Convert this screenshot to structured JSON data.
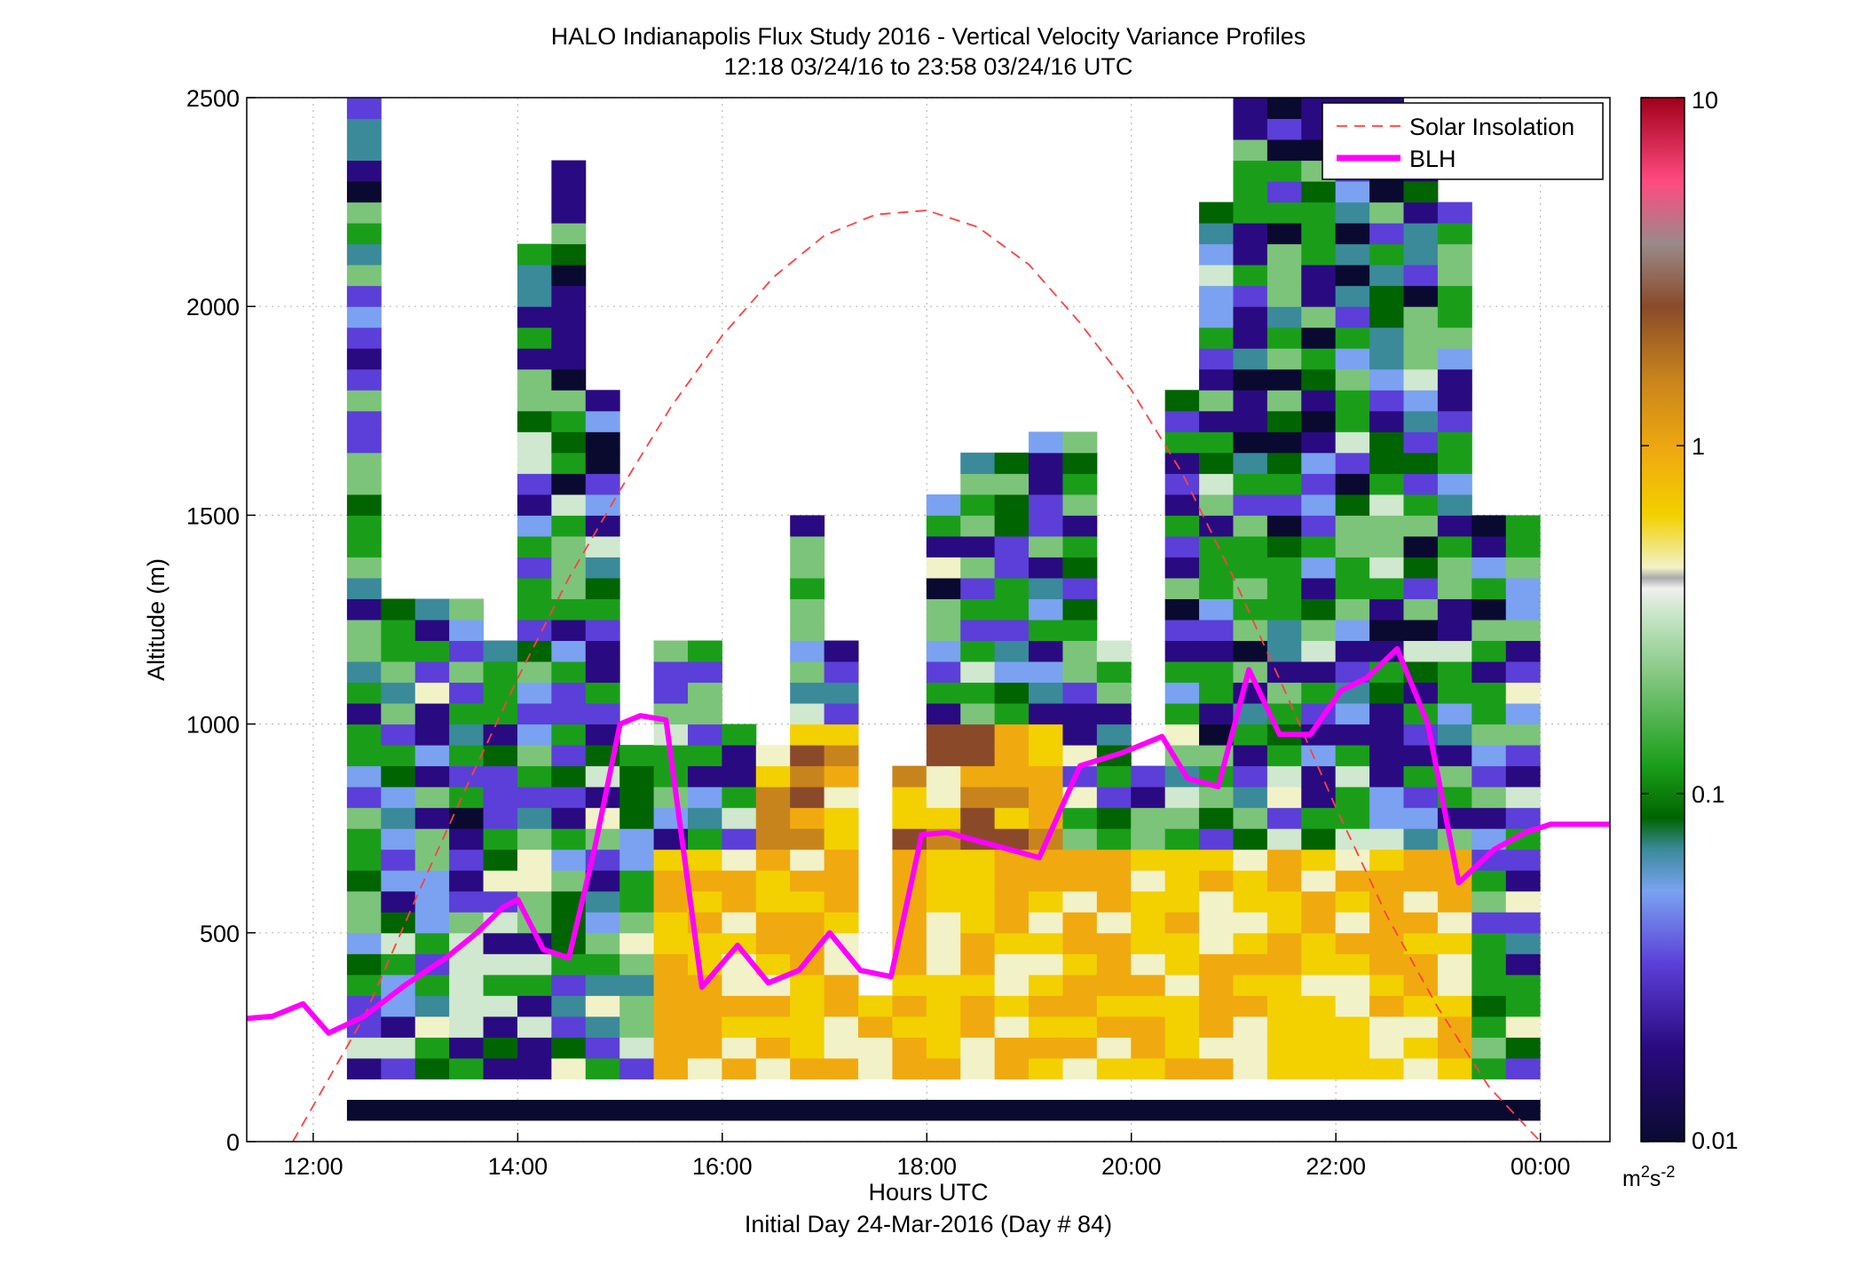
{
  "chart_data": {
    "type": "heatmap",
    "title": "HALO Indianapolis Flux Study 2016 - Vertical Velocity Variance Profiles",
    "subtitle": "12:18 03/24/16 to 23:58 03/24/16  UTC",
    "xlabel": "Hours UTC",
    "xlabel2": "Initial Day 24-Mar-2016 (Day # 84)",
    "ylabel": "Altitude (m)",
    "x_range_hours": [
      11.35,
      24.68
    ],
    "y_range_m": [
      0,
      2500
    ],
    "x_ticks": [
      {
        "value": 12,
        "label": "12:00"
      },
      {
        "value": 14,
        "label": "14:00"
      },
      {
        "value": 16,
        "label": "16:00"
      },
      {
        "value": 18,
        "label": "18:00"
      },
      {
        "value": 20,
        "label": "20:00"
      },
      {
        "value": 22,
        "label": "22:00"
      },
      {
        "value": 24,
        "label": "00:00"
      }
    ],
    "y_ticks": [
      {
        "value": 0,
        "label": "0"
      },
      {
        "value": 500,
        "label": "500"
      },
      {
        "value": 1000,
        "label": "1000"
      },
      {
        "value": 1500,
        "label": "1500"
      },
      {
        "value": 2000,
        "label": "2000"
      },
      {
        "value": 2500,
        "label": "2500"
      }
    ],
    "grid": true,
    "legend_position": "top-right",
    "colorbar": {
      "scale": "log",
      "range": [
        0.01,
        10
      ],
      "ticks": [
        {
          "value": 0.01,
          "label": "0.01"
        },
        {
          "value": 0.1,
          "label": "0.1"
        },
        {
          "value": 1,
          "label": "1"
        },
        {
          "value": 10,
          "label": "10"
        }
      ],
      "unit_base": "m",
      "unit_sup1": "2",
      "unit_mid": "s",
      "unit_sup2": "-2"
    },
    "series": [
      {
        "name": "Solar Insolation",
        "style": "dashed",
        "color": "#ff4040",
        "x": [
          11.8,
          12.5,
          13.0,
          13.5,
          14.0,
          14.5,
          15.0,
          15.5,
          16.0,
          16.5,
          17.0,
          17.5,
          18.0,
          18.5,
          19.0,
          19.5,
          20.0,
          20.5,
          21.0,
          21.5,
          22.0,
          22.5,
          23.0,
          23.5,
          24.0
        ],
        "y": [
          0,
          300,
          580,
          850,
          1110,
          1350,
          1560,
          1760,
          1930,
          2070,
          2170,
          2220,
          2230,
          2190,
          2100,
          1960,
          1800,
          1600,
          1350,
          1080,
          800,
          540,
          320,
          130,
          0
        ]
      },
      {
        "name": "BLH",
        "style": "solid",
        "color": "#ff00ff",
        "x": [
          11.35,
          11.6,
          11.9,
          12.15,
          12.5,
          12.9,
          13.3,
          13.6,
          13.85,
          14.0,
          14.25,
          14.5,
          14.75,
          15.0,
          15.2,
          15.45,
          15.8,
          16.15,
          16.45,
          16.75,
          17.05,
          17.35,
          17.65,
          17.95,
          18.2,
          18.5,
          18.8,
          19.1,
          19.5,
          19.9,
          20.3,
          20.55,
          20.85,
          21.15,
          21.45,
          21.75,
          22.05,
          22.3,
          22.6,
          22.9,
          23.2,
          23.55,
          23.85,
          24.1,
          24.3,
          24.55,
          24.68
        ],
        "y": [
          295,
          300,
          330,
          260,
          300,
          375,
          440,
          500,
          560,
          580,
          460,
          440,
          700,
          1000,
          1020,
          1010,
          370,
          470,
          380,
          410,
          500,
          410,
          395,
          735,
          740,
          720,
          700,
          680,
          900,
          930,
          970,
          870,
          850,
          1130,
          975,
          975,
          1080,
          1110,
          1180,
          1000,
          620,
          700,
          740,
          760,
          760,
          760,
          760
        ]
      }
    ]
  }
}
